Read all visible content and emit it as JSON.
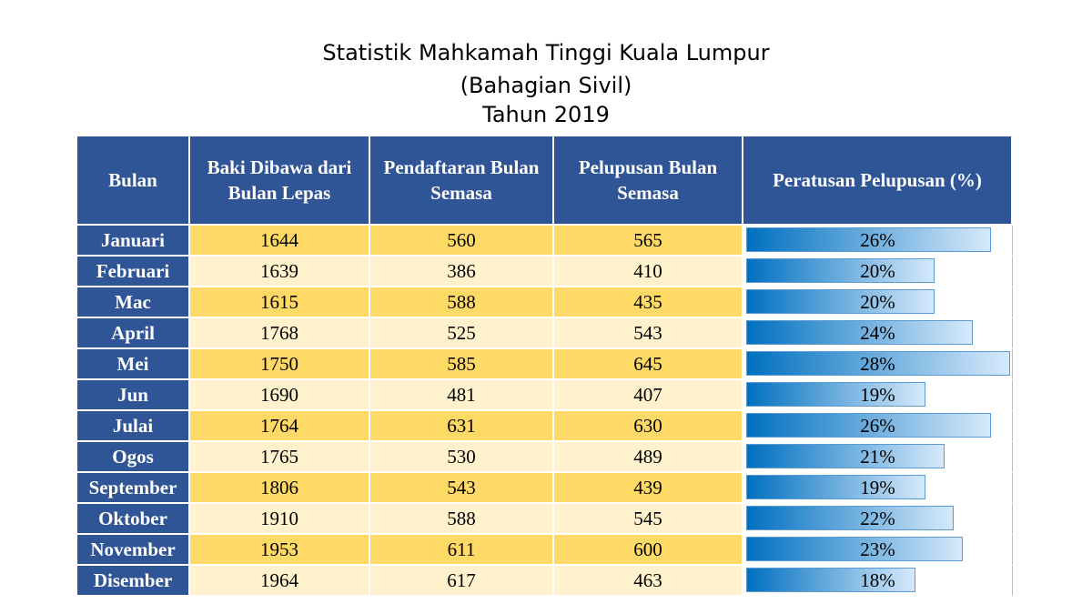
{
  "title": [
    "Statistik Mahkamah Tinggi Kuala Lumpur",
    "(Bahagian Sivil)",
    "Tahun 2019"
  ],
  "table": {
    "columns": [
      "Bulan",
      "Baki Dibawa dari Bulan Lepas",
      "Pendaftaran Bulan Semasa",
      "Pelupusan Bulan Semasa",
      "Peratusan Pelupusan (%)"
    ],
    "rows": [
      [
        "Januari",
        1644,
        560,
        565,
        {
          "value": 26,
          "label": "26%"
        }
      ],
      [
        "Februari",
        1639,
        386,
        410,
        {
          "value": 20,
          "label": "20%"
        }
      ],
      [
        "Mac",
        1615,
        588,
        435,
        {
          "value": 20,
          "label": "20%"
        }
      ],
      [
        "April",
        1768,
        525,
        543,
        {
          "value": 24,
          "label": "24%"
        }
      ],
      [
        "Mei",
        1750,
        585,
        645,
        {
          "value": 28,
          "label": "28%"
        }
      ],
      [
        "Jun",
        1690,
        481,
        407,
        {
          "value": 19,
          "label": "19%"
        }
      ],
      [
        "Julai",
        1764,
        631,
        630,
        {
          "value": 26,
          "label": "26%"
        }
      ],
      [
        "Ogos",
        1765,
        530,
        489,
        {
          "value": 21,
          "label": "21%"
        }
      ],
      [
        "September",
        1806,
        543,
        439,
        {
          "value": 19,
          "label": "19%"
        }
      ],
      [
        "Oktober",
        1910,
        588,
        545,
        {
          "value": 22,
          "label": "22%"
        }
      ],
      [
        "November",
        1953,
        611,
        600,
        {
          "value": 23,
          "label": "23%"
        }
      ],
      [
        "Disember",
        1964,
        617,
        463,
        {
          "value": 18,
          "label": "18%"
        }
      ]
    ]
  }
}
